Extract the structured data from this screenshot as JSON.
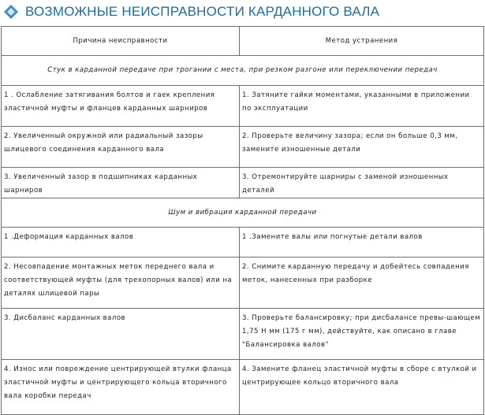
{
  "header": {
    "title": "ВОЗМОЖНЫЕ НЕИСПРАВНОСТИ КАРДАННОГО ВАЛА"
  },
  "table": {
    "columns": [
      "Причина неисправности",
      "Метод устранения"
    ],
    "groups": [
      {
        "title": "Стук в карданной передаче при трогании с места, при резком разгоне или переключении передач",
        "rows": [
          [
            "1 . Ослабление затягивания болтов и гаек крепления эластичной муфты и фланцев карданных шарниров",
            "1. Затяните гайки моментами, указанными в приложении по эксплуатации"
          ],
          [
            "2. Увеличенный окружной или радиальный зазоры шлицевого соединения карданного вала",
            "2. Проверьте величину зазора; если он больше        0,3 мм, замените изношенные детали"
          ],
          [
            "3. Увеличенный зазор в подшипниках карданных шарниров",
            "3. Отремонтируйте шарниры с заменой изношенных деталей"
          ]
        ]
      },
      {
        "title": "Шум и вибрация карданной передачи",
        "rows": [
          [
            "1 .Деформация карданных валов",
            "1 .Замените валы или погнутые детали валов"
          ],
          [
            "2. Несовпадение монтажных меток переднего вала и соответствующей муфты (для трехопорных валов) или на деталях шлицевой пары",
            "2. Снимите карданную передачу и добейтесь совпадения меток, нанесенных при разборке"
          ],
          [
            "3. Дисбаланс карданных валов",
            "3. Проверьте балансировку; при дисбалансе превы-шающем 1,75 Н мм (175 г мм), действуйте, как описано в главе \"Балансировка валов\""
          ],
          [
            "4. Износ или повреждение центрирующей втулки фланца эластичной муфты и центрирующего кольца вторичного вала коробки передач",
            "4. Замените фланец эластичной муфты в сборе с втулкой и центрирующее кольцо вторичного вала"
          ]
        ]
      }
    ]
  }
}
